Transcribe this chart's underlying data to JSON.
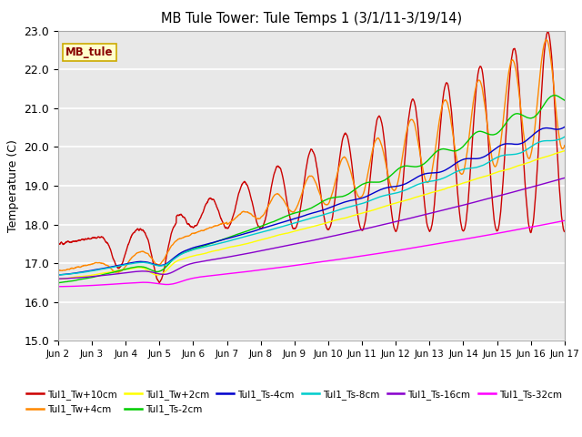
{
  "title": "MB Tule Tower: Tule Temps 1 (3/1/11-3/19/14)",
  "ylabel": "Temperature (C)",
  "xlim": [
    0,
    15
  ],
  "ylim": [
    15.0,
    23.0
  ],
  "ytick_positions": [
    15.0,
    16.0,
    17.0,
    18.0,
    19.0,
    20.0,
    21.0,
    22.0,
    23.0
  ],
  "ytick_labels": [
    "15.0",
    "16.0",
    "17.0",
    "18.0",
    "19.0",
    "20.0",
    "21.0",
    "22.0",
    "23.0"
  ],
  "xtick_labels": [
    "Jun 2",
    "Jun 3",
    "Jun 4",
    "Jun 5",
    "Jun 6",
    "Jun 7",
    "Jun 8",
    "Jun 9",
    "Jun 10",
    "Jun 11",
    "Jun 12",
    "Jun 13",
    "Jun 14",
    "Jun 15",
    "Jun 16",
    "Jun 17"
  ],
  "xtick_positions": [
    0,
    1,
    2,
    3,
    4,
    5,
    6,
    7,
    8,
    9,
    10,
    11,
    12,
    13,
    14,
    15
  ],
  "background_color": "#e8e8e8",
  "fig_background": "#ffffff",
  "legend_box_color": "#ffffcc",
  "legend_box_text": "MB_tule",
  "legend_box_edgecolor": "#ccaa00",
  "series": {
    "Tul1_Tw+10cm": "#cc0000",
    "Tul1_Tw+4cm": "#ff8800",
    "Tul1_Tw+2cm": "#ffff00",
    "Tul1_Ts-2cm": "#00cc00",
    "Tul1_Ts-4cm": "#0000cc",
    "Tul1_Ts-8cm": "#00cccc",
    "Tul1_Ts-16cm": "#8800cc",
    "Tul1_Ts-32cm": "#ff00ff"
  },
  "legend_order": [
    "Tul1_Tw+10cm",
    "Tul1_Tw+4cm",
    "Tul1_Tw+2cm",
    "Tul1_Ts-2cm",
    "Tul1_Ts-4cm",
    "Tul1_Ts-8cm",
    "Tul1_Ts-16cm",
    "Tul1_Ts-32cm"
  ]
}
